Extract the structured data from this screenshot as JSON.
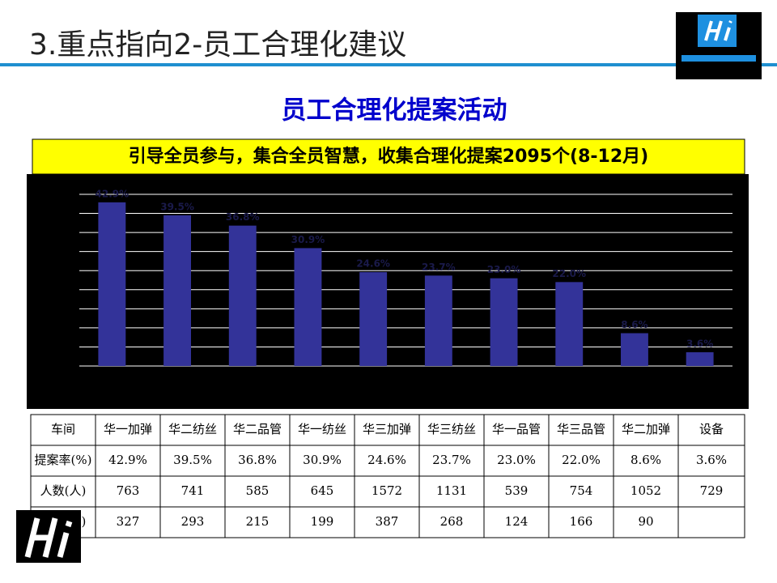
{
  "header": {
    "title": "3.重点指向2-员工合理化建议"
  },
  "heading": "员工合理化提案活动",
  "banner": "引导全员参与，集合全员智慧，收集合理化提案2095个(8-12月)",
  "chart_data": {
    "type": "bar",
    "values": [
      42.9,
      39.5,
      36.8,
      30.9,
      24.6,
      23.7,
      23.0,
      22.0,
      8.6,
      3.6
    ],
    "value_labels": [
      "42.9%",
      "39.5%",
      "36.8%",
      "30.9%",
      "24.6%",
      "23.7%",
      "23.0%",
      "22.0%",
      "8.6%",
      "3.6%"
    ],
    "color": "#333399",
    "ylim": [
      0,
      45
    ],
    "yticks": [
      0,
      5,
      10,
      15,
      20,
      25,
      30,
      35,
      40,
      45
    ],
    "grid": true
  },
  "table": {
    "rows": [
      [
        "车间",
        "华一加弹",
        "华二纺丝",
        "华二品管",
        "华一纺丝",
        "华三加弹",
        "华三纺丝",
        "华一品管",
        "华三品管",
        "华二加弹",
        "设备"
      ],
      [
        "提案率(%)",
        "42.9%",
        "39.5%",
        "36.8%",
        "30.9%",
        "24.6%",
        "23.7%",
        "23.0%",
        "22.0%",
        "8.6%",
        "3.6%"
      ],
      [
        "人数(人)",
        "763",
        "741",
        "585",
        "645",
        "1572",
        "1131",
        "539",
        "754",
        "1052",
        "729"
      ],
      [
        "提案(个)",
        "327",
        "293",
        "215",
        "199",
        "387",
        "268",
        "124",
        "166",
        "90",
        null
      ]
    ]
  }
}
